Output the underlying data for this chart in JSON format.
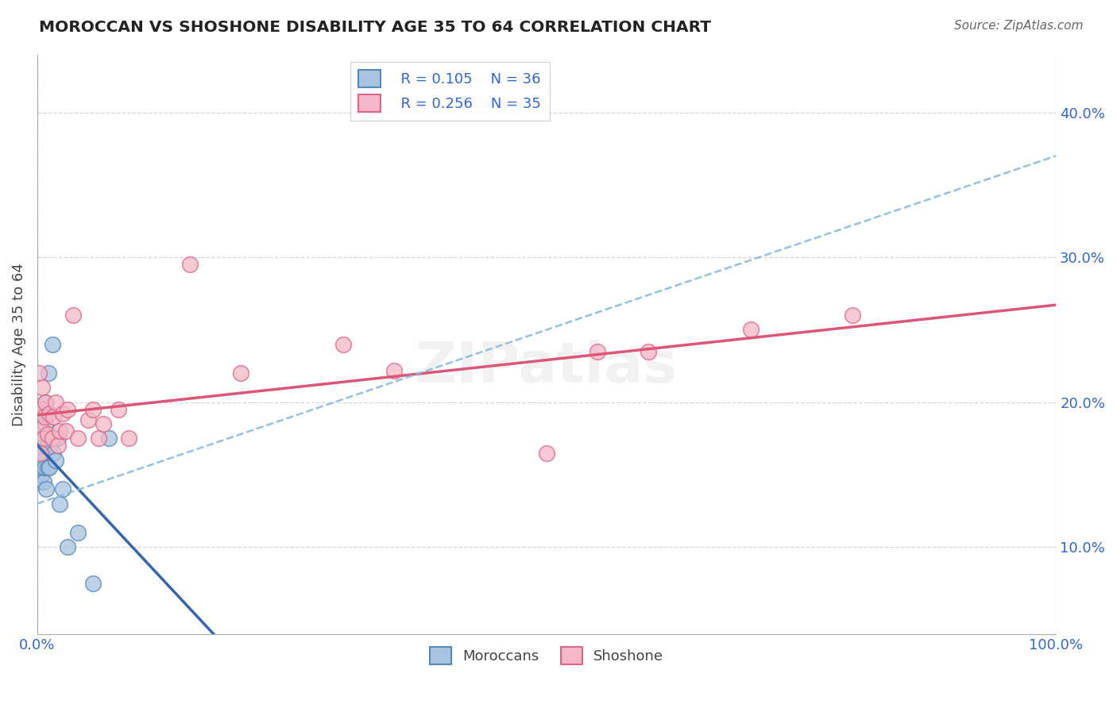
{
  "title": "MOROCCAN VS SHOSHONE DISABILITY AGE 35 TO 64 CORRELATION CHART",
  "source": "Source: ZipAtlas.com",
  "ylabel": "Disability Age 35 to 64",
  "y_ticks": [
    0.1,
    0.2,
    0.3,
    0.4
  ],
  "y_tick_labels": [
    "10.0%",
    "20.0%",
    "30.0%",
    "40.0%"
  ],
  "x_range": [
    0.0,
    1.0
  ],
  "y_range": [
    0.04,
    0.44
  ],
  "moroccan_color": "#a8c4e0",
  "moroccan_edge_color": "#5588bb",
  "shoshone_color": "#f4b8c8",
  "shoshone_edge_color": "#dd6688",
  "moroccan_line_color": "#3366aa",
  "shoshone_line_color": "#dd5577",
  "dash_line_color": "#88bbdd",
  "legend_moroccan_label": "Moroccans",
  "legend_shoshone_label": "Shoshone",
  "moroccan_R": "R = 0.105",
  "moroccan_N": "N = 36",
  "shoshone_R": "R = 0.256",
  "shoshone_N": "N = 35",
  "watermark": "ZIPatlas",
  "background_color": "#ffffff",
  "grid_color": "#cccccc",
  "moroccan_x": [
    0.0,
    0.0,
    0.001,
    0.002,
    0.002,
    0.003,
    0.003,
    0.003,
    0.004,
    0.004,
    0.005,
    0.005,
    0.005,
    0.006,
    0.006,
    0.006,
    0.007,
    0.007,
    0.008,
    0.008,
    0.009,
    0.01,
    0.01,
    0.011,
    0.012,
    0.013,
    0.015,
    0.016,
    0.018,
    0.02,
    0.022,
    0.025,
    0.03,
    0.04,
    0.055,
    0.07
  ],
  "moroccan_y": [
    0.155,
    0.165,
    0.145,
    0.16,
    0.175,
    0.155,
    0.165,
    0.19,
    0.15,
    0.162,
    0.155,
    0.165,
    0.175,
    0.145,
    0.16,
    0.175,
    0.155,
    0.17,
    0.185,
    0.2,
    0.14,
    0.155,
    0.17,
    0.22,
    0.155,
    0.17,
    0.24,
    0.165,
    0.16,
    0.175,
    0.13,
    0.14,
    0.1,
    0.11,
    0.075,
    0.175
  ],
  "shoshone_x": [
    0.002,
    0.003,
    0.004,
    0.005,
    0.005,
    0.006,
    0.007,
    0.008,
    0.01,
    0.012,
    0.015,
    0.016,
    0.018,
    0.02,
    0.022,
    0.025,
    0.028,
    0.03,
    0.035,
    0.04,
    0.05,
    0.055,
    0.06,
    0.065,
    0.08,
    0.09,
    0.15,
    0.2,
    0.3,
    0.35,
    0.5,
    0.55,
    0.6,
    0.7,
    0.8
  ],
  "shoshone_y": [
    0.22,
    0.165,
    0.182,
    0.195,
    0.21,
    0.175,
    0.19,
    0.2,
    0.178,
    0.192,
    0.175,
    0.19,
    0.2,
    0.17,
    0.18,
    0.192,
    0.18,
    0.195,
    0.26,
    0.175,
    0.188,
    0.195,
    0.175,
    0.185,
    0.195,
    0.175,
    0.295,
    0.22,
    0.24,
    0.222,
    0.165,
    0.235,
    0.235,
    0.25,
    0.26
  ]
}
